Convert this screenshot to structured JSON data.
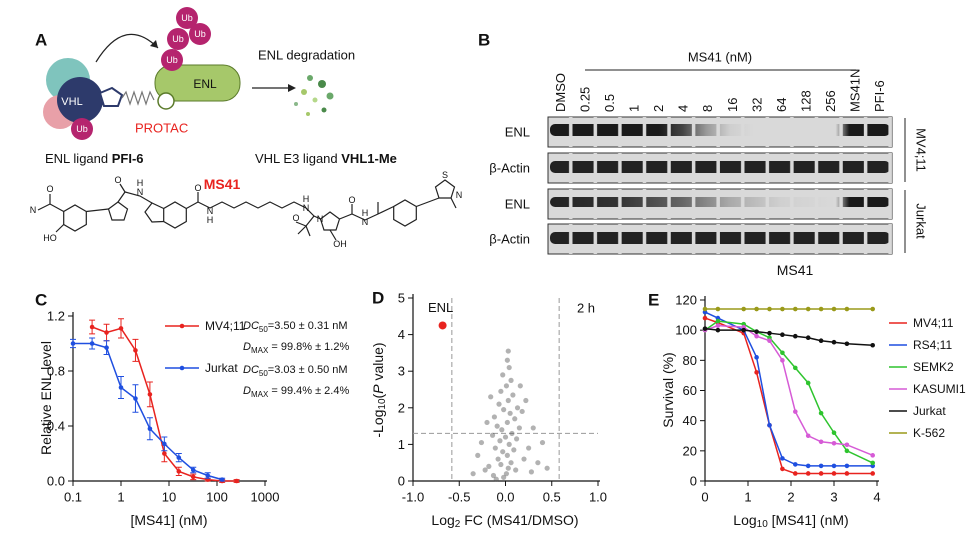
{
  "panel_a": {
    "label": "A",
    "ub": "Ub",
    "vhl": "VHL",
    "enl": "ENL",
    "protac": "PROTAC",
    "degradation": "ENL degradation",
    "enl_ligand": {
      "prefix": "ENL ligand",
      "name": "PFI-6"
    },
    "vhl_ligand": {
      "prefix": "VHL E3 ligand",
      "name": "VHL1-Me"
    },
    "compound": "MS41",
    "atoms": [
      "O",
      "N",
      "HO",
      "O",
      "N",
      "H",
      "O",
      "N",
      "H",
      "N",
      "H",
      "O",
      "N",
      "OH",
      "O",
      "N",
      "H",
      "S",
      "N"
    ]
  },
  "panel_b": {
    "label": "B",
    "treatment": "MS41 (nM)",
    "lanes": [
      "DMSO",
      "0.25",
      "0.5",
      "1",
      "2",
      "4",
      "8",
      "16",
      "32",
      "64",
      "128",
      "256",
      "MS41N",
      "PFI-6"
    ],
    "rows": [
      "ENL",
      "β-Actin",
      "ENL",
      "β-Actin"
    ],
    "cell_lines": [
      "MV4;11",
      "Jurkat"
    ]
  },
  "chart_data": [
    {
      "panel": "C",
      "type": "line",
      "log_x": true,
      "legend": "upper right",
      "x_label": "[MS41] (nM)",
      "y_label": "Relative ENL level",
      "x": [
        0.1,
        0.25,
        0.5,
        1,
        2,
        4,
        8,
        16,
        32,
        64,
        128,
        256
      ],
      "xlim": [
        0.1,
        1000
      ],
      "xticks": [
        0.1,
        1,
        10,
        100,
        1000
      ],
      "ylim": [
        0,
        1.2
      ],
      "yticks": [
        {
          "value": 0,
          "label": "0.0"
        },
        {
          "value": 0.4,
          "label": "0.4"
        },
        {
          "value": 0.8,
          "label": "0.8"
        },
        {
          "value": 1.2,
          "label": "1.2"
        }
      ],
      "series": [
        {
          "name": "MV4;11",
          "color": "#e8231f",
          "values": [
            null,
            1.12,
            1.08,
            1.11,
            0.95,
            0.63,
            0.2,
            0.07,
            0.03,
            0.01,
            0.0,
            0.0
          ],
          "errors": [
            null,
            0.05,
            0.06,
            0.07,
            0.08,
            0.09,
            0.06,
            0.03,
            0.02,
            0.01,
            0.01,
            0.01
          ]
        },
        {
          "name": "Jurkat",
          "color": "#1f4fe0",
          "values": [
            1.0,
            1.0,
            0.97,
            0.68,
            0.6,
            0.38,
            0.27,
            0.17,
            0.08,
            0.04,
            0.01,
            null
          ],
          "errors": [
            0.03,
            0.04,
            0.05,
            0.08,
            0.1,
            0.08,
            0.05,
            0.03,
            0.02,
            0.02,
            0.01,
            null
          ]
        }
      ],
      "annotations": [
        [
          "DC",
          "50",
          "=3.50 ± 0.31 nM"
        ],
        [
          "D",
          "MAX",
          " = 99.8% ± 1.2%"
        ],
        [
          "DC",
          "50",
          "=3.03 ± 0.50 nM"
        ],
        [
          "D",
          "MAX",
          " = 99.4% ± 2.4%"
        ]
      ]
    },
    {
      "panel": "D",
      "type": "scatter",
      "annotation": "2 h",
      "x_label": [
        "Log",
        "2",
        " FC (MS41/DMSO)"
      ],
      "y_label": [
        "-Log",
        "10",
        "(",
        "P",
        " value)"
      ],
      "xlim": [
        -1,
        1
      ],
      "xticks": [
        {
          "value": -1,
          "label": "-1.0"
        },
        -0.5,
        {
          "value": 0,
          "label": "0.0"
        },
        0.5,
        {
          "value": 1,
          "label": "1.0"
        }
      ],
      "ylim": [
        0,
        5
      ],
      "yticks": [
        0,
        1,
        2,
        3,
        4,
        5
      ],
      "thresholds_x": [
        -0.58,
        0.58
      ],
      "threshold_y": 1.3,
      "points": {
        "color": "#555555",
        "x": [
          -0.02,
          0.01,
          0.03,
          -0.05,
          0.06,
          -0.08,
          0.02,
          -0.03,
          0.09,
          -0.11,
          0.04,
          -0.06,
          0.12,
          0.0,
          -0.14,
          0.07,
          -0.04,
          0.15,
          -0.09,
          0.02,
          0.1,
          -0.12,
          0.05,
          -0.02,
          0.13,
          -0.07,
          0.03,
          0.08,
          -0.05,
          0.01,
          0.06,
          -0.03,
          0.04,
          0.02,
          0.03,
          -0.18,
          0.2,
          -0.22,
          0.25,
          0.3,
          -0.26,
          0.18,
          -0.16,
          0.35,
          -0.3,
          0.4,
          -0.35,
          0.22,
          0.28,
          -0.1,
          0.11,
          -0.2,
          0.16,
          -0.13,
          0.45
        ],
        "y": [
          0.1,
          0.2,
          0.35,
          0.45,
          0.5,
          0.6,
          0.7,
          0.8,
          0.85,
          0.9,
          1.0,
          1.1,
          1.15,
          1.2,
          1.25,
          1.3,
          1.4,
          1.45,
          1.5,
          1.6,
          1.7,
          1.75,
          1.85,
          1.95,
          2.0,
          2.1,
          2.2,
          2.35,
          2.45,
          2.6,
          2.75,
          2.9,
          3.1,
          3.3,
          3.55,
          0.4,
          0.6,
          0.3,
          0.9,
          1.45,
          1.05,
          1.9,
          2.3,
          0.5,
          0.7,
          1.05,
          0.2,
          2.2,
          0.25,
          0.05,
          0.3,
          1.6,
          2.6,
          0.15,
          0.35
        ]
      },
      "highlight": {
        "label": "ENL",
        "x": -0.68,
        "y": 4.25,
        "color": "#e8231f"
      }
    },
    {
      "panel": "E",
      "type": "line",
      "log_x": false,
      "title": "MS41",
      "legend": "outside right",
      "x_label": [
        "Log",
        "10",
        " [MS41] (nM)"
      ],
      "y_label": "Survival (%)",
      "x": [
        0,
        0.3,
        0.9,
        1.2,
        1.5,
        1.8,
        2.1,
        2.4,
        2.7,
        3.0,
        3.3,
        3.9
      ],
      "xlim": [
        0,
        4
      ],
      "xticks": [
        0,
        1,
        2,
        3,
        4
      ],
      "ylim": [
        0,
        120
      ],
      "yticks": [
        0,
        20,
        40,
        60,
        80,
        100,
        120
      ],
      "series": [
        {
          "name": "MV4;11",
          "color": "#e8231f",
          "values": [
            108,
            105,
            98,
            72,
            37,
            8,
            5,
            5,
            5,
            5,
            5,
            5
          ]
        },
        {
          "name": "RS4;11",
          "color": "#1f4fe0",
          "values": [
            112,
            108,
            100,
            82,
            37,
            15,
            11,
            10,
            10,
            10,
            10,
            10
          ]
        },
        {
          "name": "SEMK2",
          "color": "#2ec42e",
          "values": [
            100,
            106,
            104,
            99,
            95,
            85,
            75,
            65,
            45,
            32,
            20,
            12
          ]
        },
        {
          "name": "KASUMI1",
          "color": "#d65bd6",
          "values": [
            100,
            103,
            102,
            96,
            93,
            80,
            46,
            30,
            26,
            25,
            24,
            17
          ]
        },
        {
          "name": "Jurkat",
          "color": "#111111",
          "values": [
            101,
            100,
            100,
            99,
            98,
            97,
            96,
            95,
            93,
            92,
            91,
            90
          ]
        },
        {
          "name": "K-562",
          "color": "#9a9a1a",
          "values": [
            114,
            114,
            114,
            114,
            114,
            114,
            114,
            114,
            114,
            114,
            114,
            114
          ]
        }
      ]
    }
  ]
}
